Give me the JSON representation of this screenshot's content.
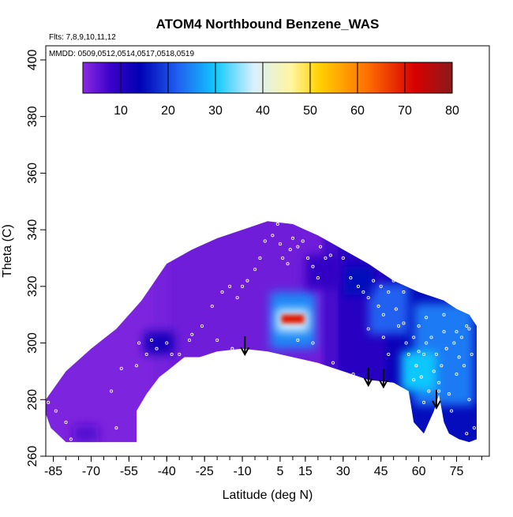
{
  "chart_data": {
    "type": "heatmap",
    "title": "ATOM4 Northbound Benzene_WAS",
    "subtitle_flights": "Flts: 7,8,9,10,11,12",
    "subtitle_dates": "MMDD: 0509,0512,0514,0517,0518,0519",
    "xlabel": "Latitude (deg N)",
    "ylabel": "Theta (C)",
    "xlim": [
      -88,
      88
    ],
    "ylim": [
      260,
      405
    ],
    "x_ticks": [
      -85,
      -70,
      -55,
      -40,
      -25,
      -10,
      5,
      15,
      30,
      45,
      60,
      75
    ],
    "y_ticks": [
      260,
      280,
      300,
      320,
      340,
      360,
      380,
      400
    ],
    "colorbar": {
      "min": 2,
      "max": 80,
      "ticks": [
        10,
        20,
        30,
        40,
        50,
        60,
        70,
        80
      ],
      "stops": [
        {
          "v": 2,
          "c": "#8a2be2"
        },
        {
          "v": 8,
          "c": "#3a00c8"
        },
        {
          "v": 14,
          "c": "#0000b4"
        },
        {
          "v": 22,
          "c": "#2060f0"
        },
        {
          "v": 30,
          "c": "#10c8ff"
        },
        {
          "v": 38,
          "c": "#d8f0ff"
        },
        {
          "v": 46,
          "c": "#fff6a0"
        },
        {
          "v": 52,
          "c": "#ffd000"
        },
        {
          "v": 62,
          "c": "#ff7000"
        },
        {
          "v": 72,
          "c": "#d80000"
        },
        {
          "v": 80,
          "c": "#8a1a1a"
        }
      ]
    },
    "domain": {
      "top": [
        [
          -88,
          280
        ],
        [
          -80,
          290
        ],
        [
          -70,
          298
        ],
        [
          -60,
          305
        ],
        [
          -50,
          315
        ],
        [
          -40,
          328
        ],
        [
          -30,
          333
        ],
        [
          -20,
          337
        ],
        [
          -10,
          340
        ],
        [
          0,
          343
        ],
        [
          10,
          342
        ],
        [
          20,
          338
        ],
        [
          30,
          333
        ],
        [
          40,
          328
        ],
        [
          50,
          322
        ],
        [
          60,
          318
        ],
        [
          70,
          315
        ],
        [
          75,
          312
        ],
        [
          80,
          310
        ],
        [
          83,
          306
        ]
      ],
      "bottom": [
        [
          83,
          266
        ],
        [
          80,
          265
        ],
        [
          76,
          266
        ],
        [
          72,
          268
        ],
        [
          70,
          272
        ],
        [
          68,
          282
        ],
        [
          66,
          276
        ],
        [
          62,
          268
        ],
        [
          58,
          272
        ],
        [
          56,
          283
        ],
        [
          50,
          286
        ],
        [
          40,
          287
        ],
        [
          30,
          290
        ],
        [
          20,
          293
        ],
        [
          10,
          295
        ],
        [
          0,
          297
        ],
        [
          -10,
          298
        ],
        [
          -20,
          297
        ],
        [
          -27,
          295
        ],
        [
          -33,
          295
        ],
        [
          -40,
          290
        ],
        [
          -43,
          288
        ],
        [
          -48,
          282
        ],
        [
          -52,
          276
        ],
        [
          -52,
          265
        ],
        [
          -60,
          265
        ],
        [
          -70,
          265
        ],
        [
          -80,
          265
        ],
        [
          -86,
          270
        ],
        [
          -88,
          275
        ]
      ]
    },
    "cells_base": [
      {
        "lat_min": -88,
        "lat_max": -42,
        "value": 3
      },
      {
        "lat_min": -42,
        "lat_max": 25,
        "value": 4
      },
      {
        "lat_min": 25,
        "lat_max": 50,
        "value": 10
      },
      {
        "lat_min": 50,
        "lat_max": 83,
        "value": 15
      }
    ],
    "features": [
      {
        "lat": 10,
        "theta": 308,
        "dlat": 18,
        "dtheta": 20,
        "value": 25
      },
      {
        "lat": 10,
        "theta": 308,
        "dlat": 13,
        "dtheta": 8,
        "value": 38
      },
      {
        "lat": 10,
        "theta": 308.5,
        "dlat": 9,
        "dtheta": 3,
        "value": 70
      },
      {
        "lat": 70,
        "theta": 296,
        "dlat": 24,
        "dtheta": 36,
        "value": 24
      },
      {
        "lat": 60,
        "theta": 290,
        "dlat": 14,
        "dtheta": 14,
        "value": 30
      },
      {
        "lat": 48,
        "theta": 312,
        "dlat": 16,
        "dtheta": 18,
        "value": 22
      },
      {
        "lat": 36,
        "theta": 322,
        "dlat": 12,
        "dtheta": 10,
        "value": 15
      },
      {
        "lat": -43,
        "theta": 300,
        "dlat": 12,
        "dtheta": 8,
        "value": 12
      },
      {
        "lat": 22,
        "theta": 325,
        "dlat": 14,
        "dtheta": 12,
        "value": 9
      },
      {
        "lat": -72,
        "theta": 268,
        "dlat": 10,
        "dtheta": 6,
        "value": 6
      }
    ],
    "obs_points": [
      [
        -87,
        279
      ],
      [
        -84,
        276
      ],
      [
        -80,
        272
      ],
      [
        -78,
        266
      ],
      [
        -62,
        283
      ],
      [
        -58,
        291
      ],
      [
        -52,
        292
      ],
      [
        -51,
        300
      ],
      [
        -48,
        296
      ],
      [
        -46,
        301
      ],
      [
        -44,
        298
      ],
      [
        -40,
        300
      ],
      [
        -38,
        296
      ],
      [
        -35,
        296
      ],
      [
        -31,
        301
      ],
      [
        -26,
        306
      ],
      [
        -22,
        313
      ],
      [
        -18,
        318
      ],
      [
        -15,
        320
      ],
      [
        -12,
        316
      ],
      [
        -10,
        320
      ],
      [
        -8,
        322
      ],
      [
        -5,
        326
      ],
      [
        -3,
        330
      ],
      [
        -1,
        336
      ],
      [
        2,
        338
      ],
      [
        4,
        342
      ],
      [
        5,
        335
      ],
      [
        6,
        330
      ],
      [
        8,
        328
      ],
      [
        9,
        333
      ],
      [
        10,
        337
      ],
      [
        12,
        334
      ],
      [
        14,
        336
      ],
      [
        16,
        330
      ],
      [
        18,
        327
      ],
      [
        20,
        323
      ],
      [
        21,
        334
      ],
      [
        23,
        330
      ],
      [
        25,
        331
      ],
      [
        28,
        335
      ],
      [
        30,
        330
      ],
      [
        33,
        323
      ],
      [
        36,
        320
      ],
      [
        38,
        318
      ],
      [
        40,
        316
      ],
      [
        42,
        322
      ],
      [
        44,
        313
      ],
      [
        45,
        320
      ],
      [
        46,
        310
      ],
      [
        48,
        318
      ],
      [
        50,
        322
      ],
      [
        51,
        312
      ],
      [
        52,
        306
      ],
      [
        54,
        318
      ],
      [
        55,
        300
      ],
      [
        56,
        296
      ],
      [
        58,
        302
      ],
      [
        59,
        292
      ],
      [
        60,
        306
      ],
      [
        61,
        288
      ],
      [
        62,
        296
      ],
      [
        63,
        300
      ],
      [
        64,
        283
      ],
      [
        65,
        302
      ],
      [
        66,
        290
      ],
      [
        67,
        296
      ],
      [
        68,
        286
      ],
      [
        69,
        292
      ],
      [
        70,
        304
      ],
      [
        71,
        298
      ],
      [
        72,
        282
      ],
      [
        73,
        276
      ],
      [
        74,
        300
      ],
      [
        75,
        289
      ],
      [
        76,
        295
      ],
      [
        77,
        302
      ],
      [
        78,
        292
      ],
      [
        79,
        306
      ],
      [
        80,
        280
      ],
      [
        81,
        296
      ],
      [
        82,
        270
      ],
      [
        -14,
        298
      ],
      [
        -20,
        301
      ],
      [
        -30,
        303
      ],
      [
        -60,
        270
      ],
      [
        12,
        301
      ],
      [
        18,
        300
      ],
      [
        26,
        293
      ],
      [
        34,
        289
      ],
      [
        48,
        296
      ],
      [
        40,
        305
      ],
      [
        46,
        302
      ],
      [
        54,
        307
      ],
      [
        63,
        309
      ],
      [
        70,
        310
      ],
      [
        75,
        304
      ],
      [
        80,
        305
      ],
      [
        60,
        297
      ],
      [
        62,
        279
      ],
      [
        58,
        287
      ],
      [
        68,
        283
      ],
      [
        66,
        270
      ],
      [
        79,
        268
      ]
    ],
    "arrows": [
      -9,
      40,
      46,
      67
    ]
  }
}
